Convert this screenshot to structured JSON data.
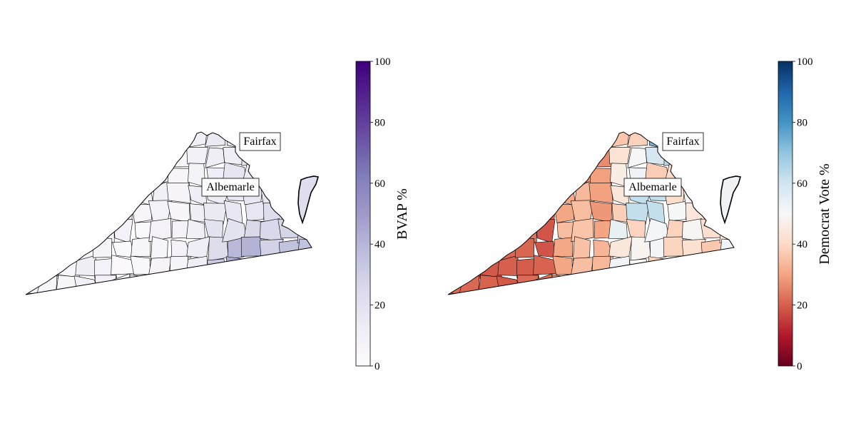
{
  "panels": [
    {
      "id": "bvap",
      "colorbar": {
        "label": "BVAP %",
        "ticks": [
          "0",
          "20",
          "40",
          "60",
          "80",
          "100"
        ],
        "colors": [
          "#fcfbfd",
          "#efedf5",
          "#dadaeb",
          "#bcbddc",
          "#9e9ac8",
          "#807dba",
          "#6a51a3",
          "#54278f",
          "#3f007d"
        ]
      },
      "callouts": {
        "fairfax": "Fairfax",
        "albemarle": "Albemarle"
      }
    },
    {
      "id": "democrat",
      "colorbar": {
        "label": "Democrat Vote %",
        "ticks": [
          "0",
          "20",
          "40",
          "60",
          "80",
          "100"
        ],
        "colors": [
          "#67001f",
          "#b2182b",
          "#d6604d",
          "#f4a582",
          "#fddbc7",
          "#f7f7f7",
          "#d1e5f0",
          "#92c5de",
          "#4393c3",
          "#2166ac",
          "#053061"
        ]
      },
      "callouts": {
        "fairfax": "Fairfax",
        "albemarle": "Albemarle"
      }
    }
  ]
}
